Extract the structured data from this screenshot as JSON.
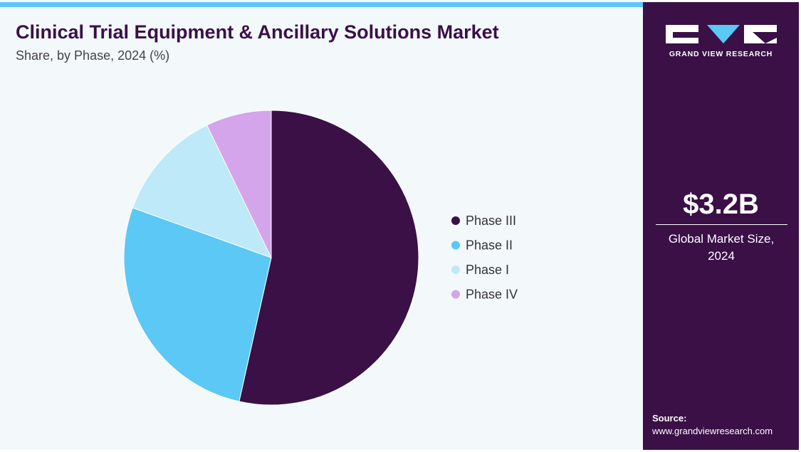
{
  "chart_data": {
    "type": "pie",
    "title": "Clinical Trial Equipment & Ancillary Solutions Market",
    "subtitle": "Share, by Phase, 2024 (%)",
    "categories": [
      "Phase III",
      "Phase II",
      "Phase I",
      "Phase IV"
    ],
    "values": [
      53.5,
      27,
      12.3,
      7.2
    ],
    "colors": [
      "#3a1047",
      "#5bc8f5",
      "#bde9f9",
      "#d4a5eb"
    ]
  },
  "sidebar": {
    "brand": "GRAND VIEW RESEARCH",
    "market_size": "$3.2B",
    "market_size_label": "Global Market Size, 2024",
    "source_label": "Source:",
    "source": "www.grandviewresearch.com"
  }
}
